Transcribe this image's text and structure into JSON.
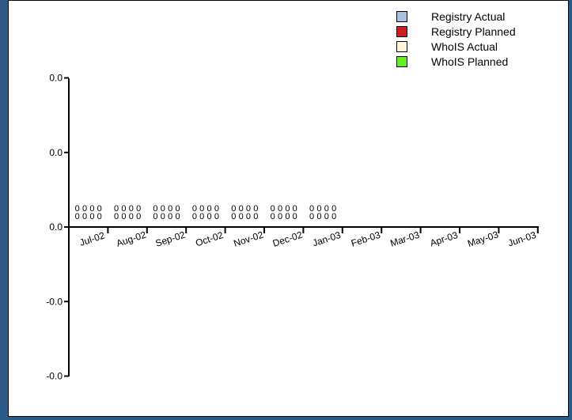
{
  "chart_data": {
    "type": "bar",
    "title": "",
    "xlabel": "",
    "ylabel": "",
    "categories": [
      "Jul-02",
      "Aug-02",
      "Sep-02",
      "Oct-02",
      "Nov-02",
      "Dec-02",
      "Jan-03",
      "Feb-03",
      "Mar-03",
      "Apr-03",
      "May-03",
      "Jun-03"
    ],
    "y_tick_labels": [
      "0.0",
      "0.0",
      "0.0",
      "-0.0",
      "-0.0"
    ],
    "ylim": [
      -2,
      2
    ],
    "series": [
      {
        "name": "Registry Actual",
        "color": "#aac0e0",
        "values": [
          0,
          0,
          0,
          0,
          0,
          0,
          0,
          null,
          null,
          null,
          null,
          null
        ]
      },
      {
        "name": "Registry Planned",
        "color": "#c8201e",
        "values": [
          0,
          0,
          0,
          0,
          0,
          0,
          0,
          null,
          null,
          null,
          null,
          null
        ]
      },
      {
        "name": "WhoIS Actual",
        "color": "#fff5dc",
        "values": [
          0,
          0,
          0,
          0,
          0,
          0,
          0,
          null,
          null,
          null,
          null,
          null
        ]
      },
      {
        "name": "WhoIS Planned",
        "color": "#66ee22",
        "values": [
          0,
          0,
          0,
          0,
          0,
          0,
          0,
          null,
          null,
          null,
          null,
          null
        ]
      }
    ],
    "data_labels": [
      "0",
      "0",
      "0",
      "0"
    ],
    "legend_position": "top-right",
    "grid": false
  }
}
